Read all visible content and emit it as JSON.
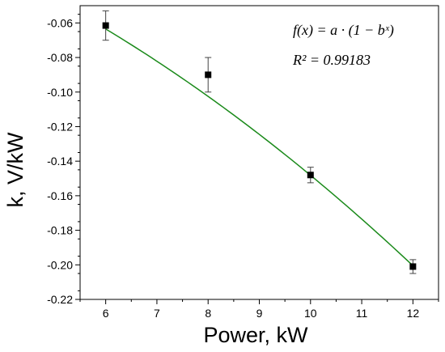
{
  "chart_data": {
    "type": "scatter",
    "xlabel": "Power, kW",
    "ylabel": "k, V/kW",
    "xlim": [
      5.5,
      12.5
    ],
    "ylim": [
      -0.22,
      -0.05
    ],
    "x_ticks": [
      6,
      7,
      8,
      9,
      10,
      11,
      12
    ],
    "y_ticks": [
      -0.06,
      -0.08,
      -0.1,
      -0.12,
      -0.14,
      -0.16,
      -0.18,
      -0.2,
      -0.22
    ],
    "x_tick_labels": [
      "6",
      "7",
      "8",
      "9",
      "10",
      "11",
      "12"
    ],
    "y_tick_labels": [
      "-0.06",
      "-0.08",
      "-0.10",
      "-0.12",
      "-0.14",
      "-0.16",
      "-0.18",
      "-0.20",
      "-0.22"
    ],
    "grid": false,
    "series": [
      {
        "marker": "square",
        "color": "#000000",
        "x": [
          6,
          8,
          10,
          12
        ],
        "y": [
          -0.0615,
          -0.09,
          -0.148,
          -0.201
        ],
        "yerr": [
          0.0085,
          0.01,
          0.0045,
          0.004
        ]
      }
    ],
    "fit": {
      "color": "#1a8a1a",
      "x_range": [
        6,
        12
      ],
      "equation": "f(x) = a · (1 − bˣ)",
      "r_squared_label": "R² = 0.99183"
    }
  }
}
